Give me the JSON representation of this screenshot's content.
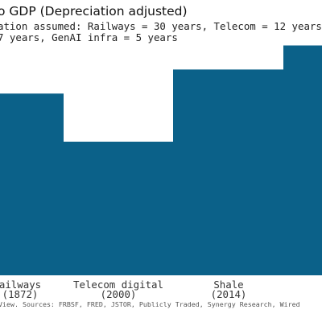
{
  "chart_data": {
    "type": "bar",
    "title": "o GDP (Depreciation adjusted)",
    "subtitle_lines": [
      "ation assumed: Railways = 30 years, Telecom = 12 years",
      " 7 years, GenAI infra = 5 years"
    ],
    "categories": [
      {
        "name": "ailways",
        "year": "(1872)"
      },
      {
        "name": "Telecom digital",
        "year": "(2000)"
      },
      {
        "name": "Shale",
        "year": "(2014)"
      },
      {
        "name": "",
        "year": ""
      }
    ],
    "values": [
      68,
      50,
      77,
      86
    ],
    "ylim": [
      0,
      100
    ],
    "bar_color": "#0b6189",
    "source": "View. Sources: FRBSF, FRED, JSTOR, Publicly Traded, Synergy Research, Wired"
  }
}
